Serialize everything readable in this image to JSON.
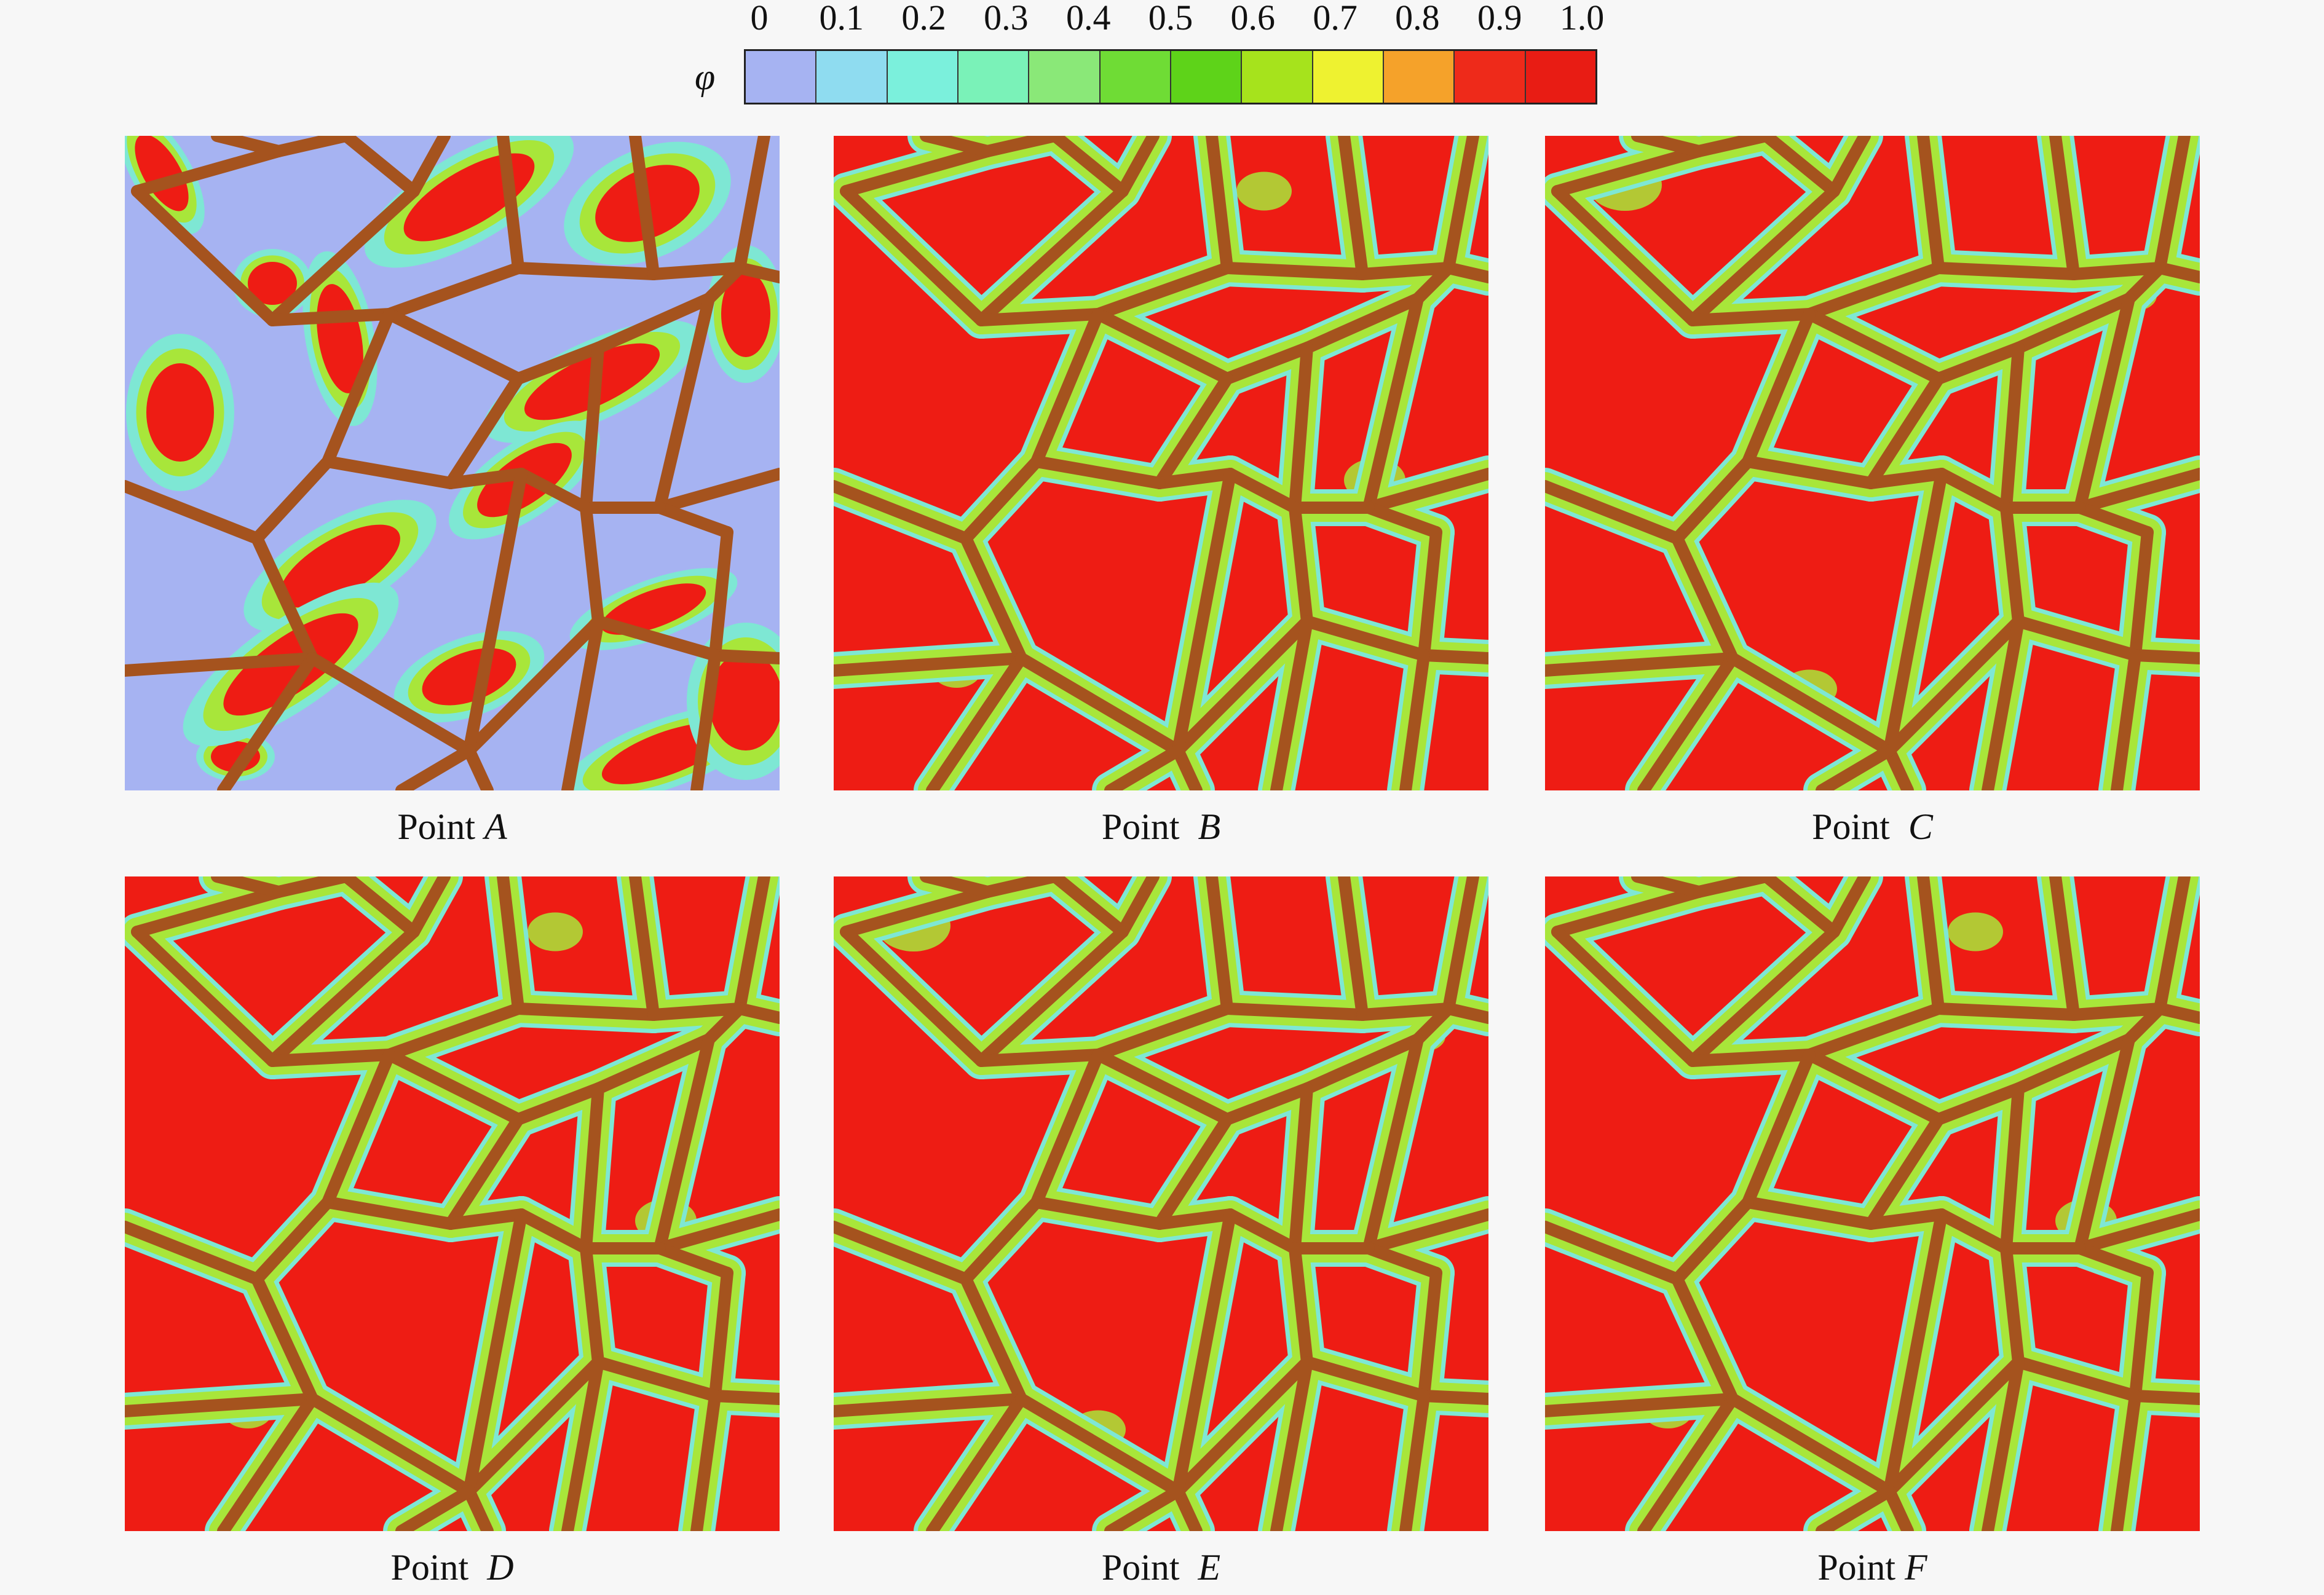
{
  "colorbar": {
    "symbol": "φ",
    "ticks": [
      "0",
      "0.1",
      "0.2",
      "0.3",
      "0.4",
      "0.5",
      "0.6",
      "0.7",
      "0.8",
      "0.9",
      "1.0"
    ],
    "colors": [
      "#a6b3f2",
      "#8fdcf0",
      "#7bf0dc",
      "#7af2b8",
      "#8ae878",
      "#6fdc35",
      "#5ed319",
      "#a6e31c",
      "#eef230",
      "#f5a22a",
      "#ee2a1a",
      "#e81c14"
    ]
  },
  "palette": {
    "grain_boundary": "#a5531e",
    "high": "#ee1c14",
    "low": "#a6b3f2",
    "transition_1": "#7ee7d4",
    "transition_2": "#a8e63a"
  },
  "panels": [
    {
      "prefix": "Point",
      "letter": "A",
      "state": "low"
    },
    {
      "prefix": "Point",
      "letter": "B",
      "state": "high"
    },
    {
      "prefix": "Point",
      "letter": "C",
      "state": "high"
    },
    {
      "prefix": "Point",
      "letter": "D",
      "state": "high"
    },
    {
      "prefix": "Point",
      "letter": "E",
      "state": "high"
    },
    {
      "prefix": "Point",
      "letter": "F",
      "state": "high"
    }
  ]
}
